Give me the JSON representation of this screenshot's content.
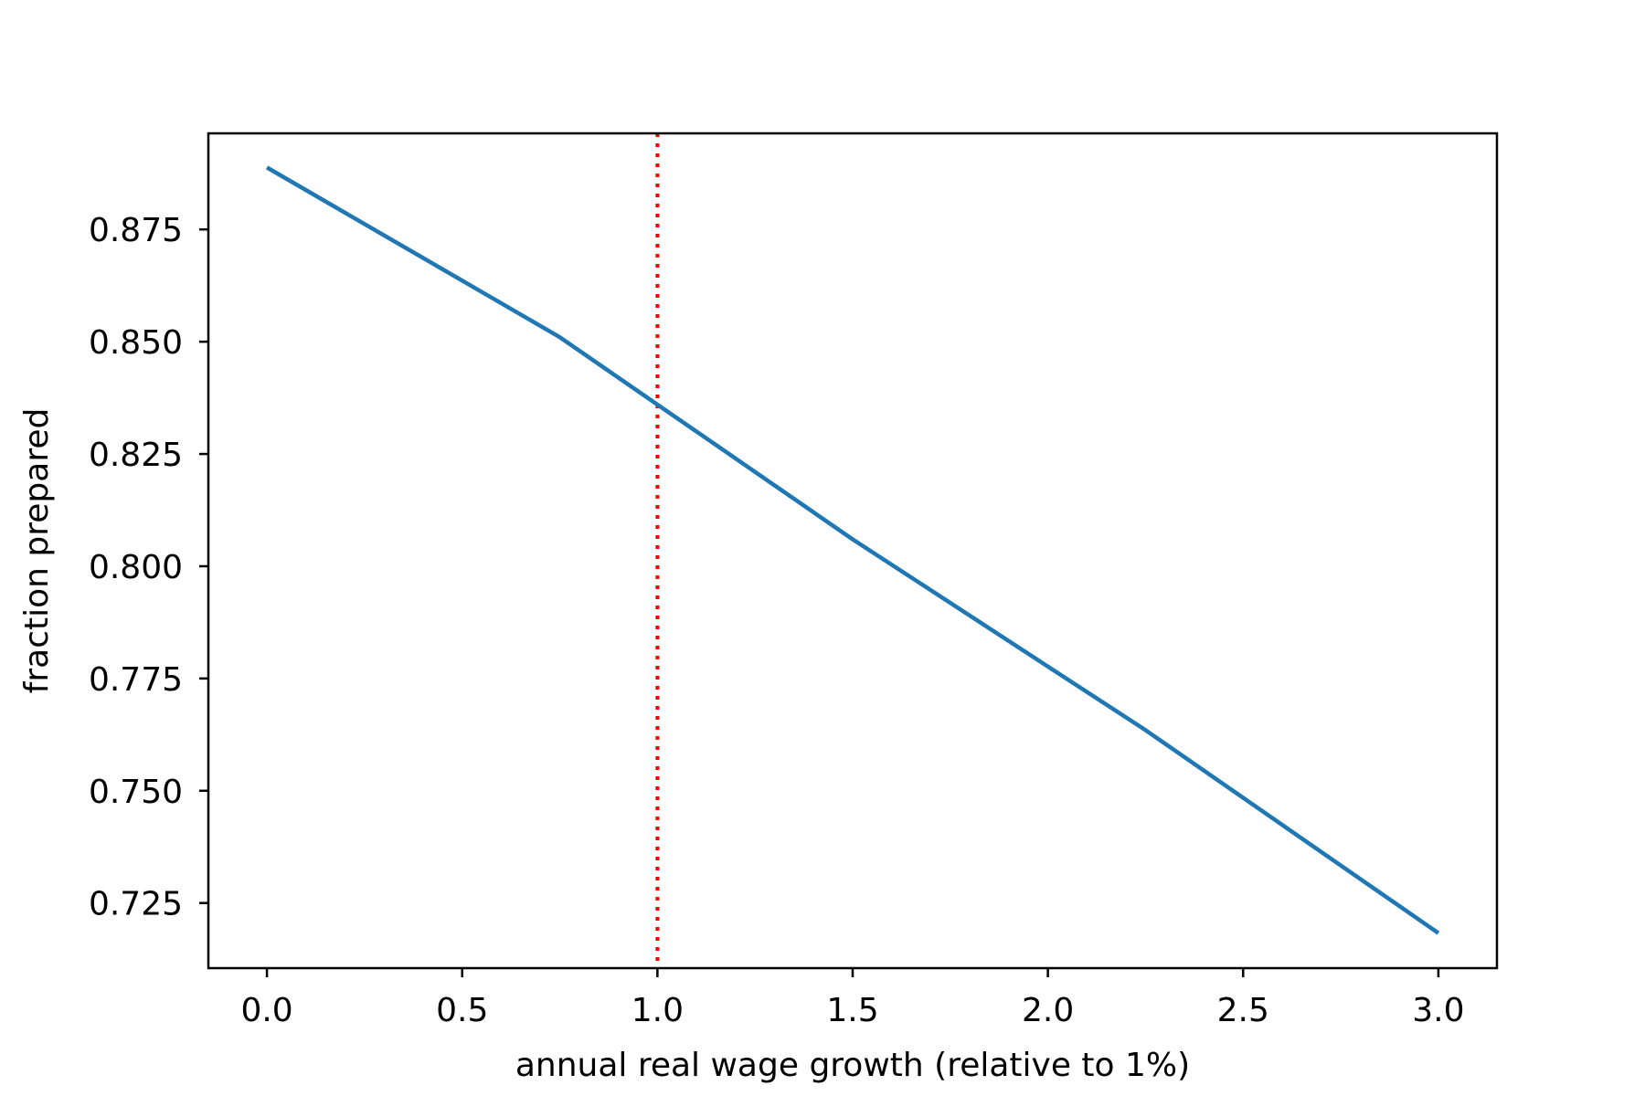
{
  "chart_data": {
    "type": "line",
    "title": "",
    "xlabel": "annual real wage growth (relative to 1%)",
    "ylabel": "fraction prepared",
    "xlim": [
      -0.15,
      3.15
    ],
    "ylim": [
      0.7105,
      0.8964
    ],
    "x_ticks": [
      0.0,
      0.5,
      1.0,
      1.5,
      2.0,
      2.5,
      3.0
    ],
    "x_tick_labels": [
      "0.0",
      "0.5",
      "1.0",
      "1.5",
      "2.0",
      "2.5",
      "3.0"
    ],
    "y_ticks": [
      0.725,
      0.75,
      0.775,
      0.8,
      0.825,
      0.85,
      0.875
    ],
    "y_tick_labels": [
      "0.725",
      "0.750",
      "0.775",
      "0.800",
      "0.825",
      "0.850",
      "0.875"
    ],
    "grid": false,
    "legend": "none",
    "series": [
      {
        "color": "#1f77b4",
        "x": [
          0.0,
          0.75,
          1.0,
          1.5,
          2.25,
          3.0
        ],
        "y": [
          0.8888,
          0.851,
          0.836,
          0.806,
          0.7635,
          0.7183
        ]
      }
    ],
    "reference_lines": [
      {
        "orientation": "vertical",
        "x": 1.0,
        "color": "#ff0000",
        "style": "dotted"
      }
    ]
  }
}
